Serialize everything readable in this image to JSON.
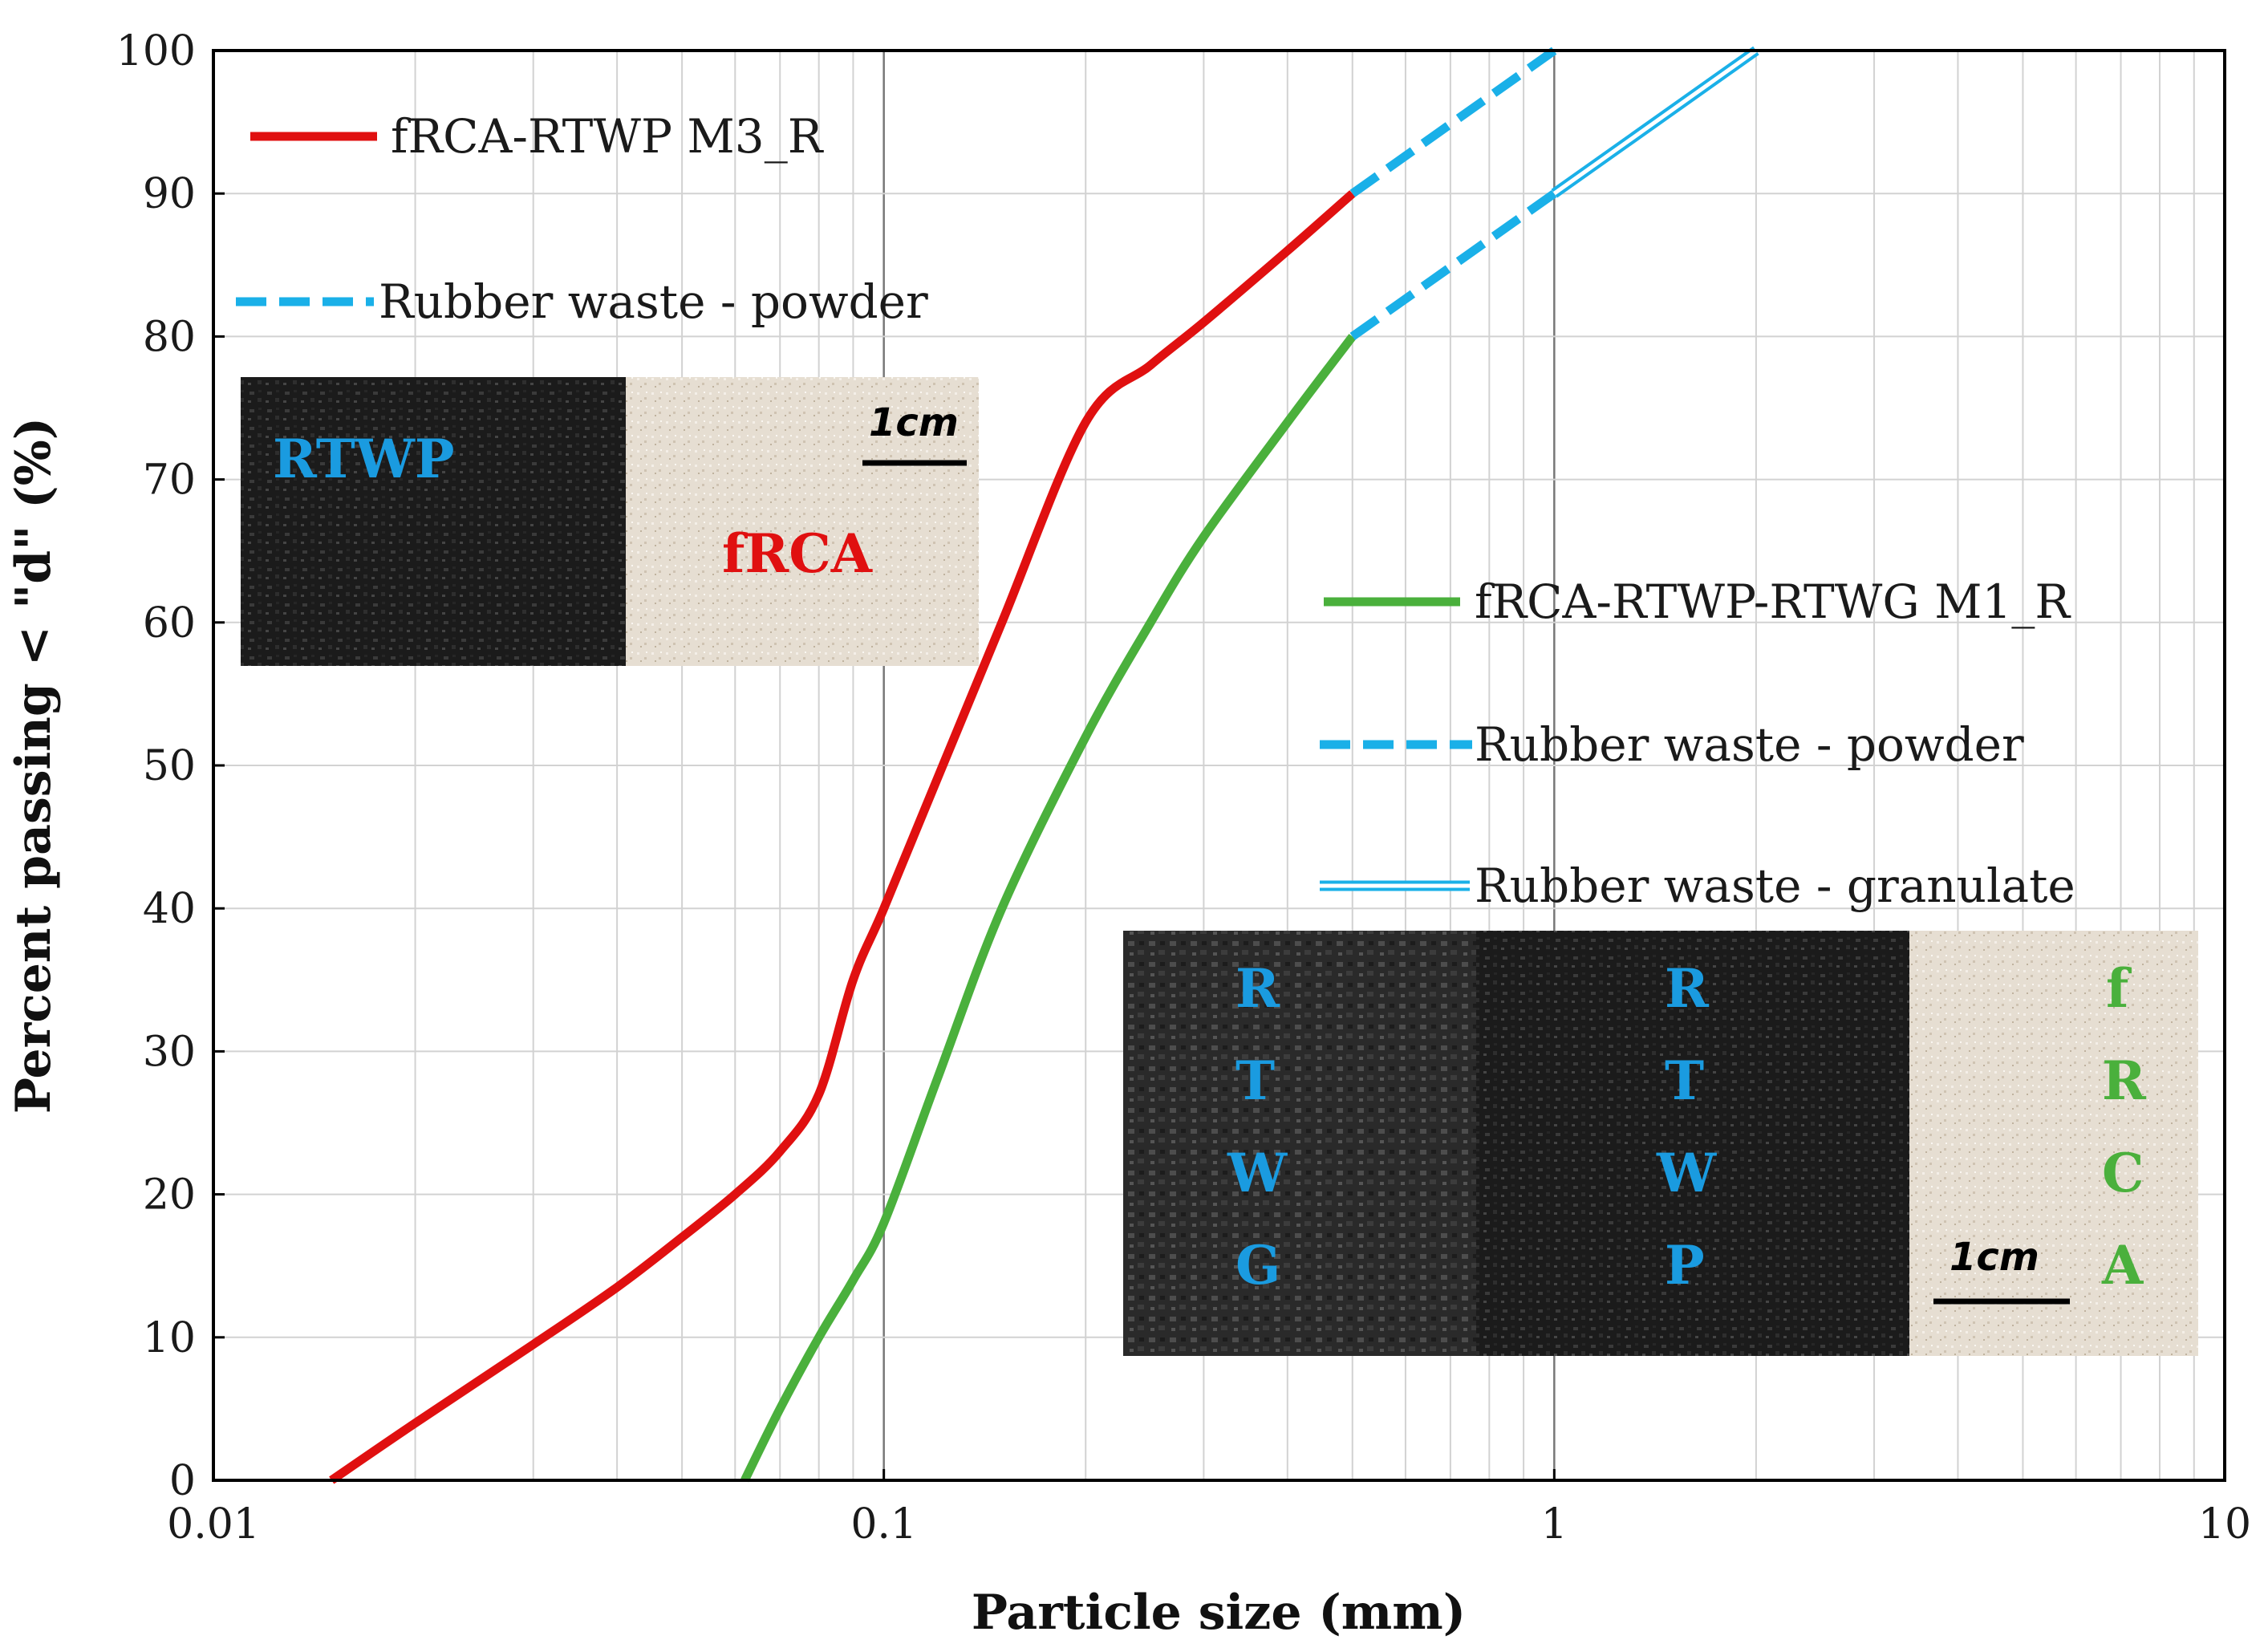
{
  "chart_data": {
    "type": "line",
    "xlabel": "Particle size (mm)",
    "ylabel": "Percent passing < \"d\" (%)",
    "x_scale": "log",
    "xlim": [
      0.01,
      10
    ],
    "ylim": [
      0,
      100
    ],
    "x_tick_labels": [
      "0.01",
      "0.1",
      "1",
      "10"
    ],
    "y_tick_labels": [
      "0",
      "10",
      "20",
      "30",
      "40",
      "50",
      "60",
      "70",
      "80",
      "90",
      "100"
    ],
    "grid": true,
    "series": [
      {
        "name": "fRCA-RTWP  M3_R",
        "color": "#e01010",
        "style": "solid",
        "x": [
          0.015,
          0.02,
          0.03,
          0.04,
          0.05,
          0.06,
          0.07,
          0.08,
          0.09,
          0.1,
          0.12,
          0.15,
          0.2,
          0.25,
          0.3,
          0.4,
          0.5
        ],
        "y": [
          0,
          4,
          9.5,
          13.5,
          17,
          20,
          23,
          27,
          35,
          40,
          49,
          60,
          74,
          78,
          81,
          86,
          90
        ]
      },
      {
        "name": "Rubber waste - powder",
        "color": "#1ab0e8",
        "style": "dashed",
        "x": [
          0.5,
          1.0
        ],
        "y": [
          90,
          100
        ]
      },
      {
        "name": "fRCA-RTWP-RTWG  M1_R",
        "color": "#4ab03c",
        "style": "solid",
        "x": [
          0.062,
          0.07,
          0.08,
          0.09,
          0.1,
          0.12,
          0.15,
          0.2,
          0.25,
          0.3,
          0.4,
          0.5
        ],
        "y": [
          0,
          5,
          10,
          14,
          18,
          28,
          40,
          52,
          60,
          66,
          74,
          80
        ]
      },
      {
        "name": "Rubber waste - powder",
        "color": "#1ab0e8",
        "style": "dashed",
        "x": [
          0.5,
          1.0
        ],
        "y": [
          80,
          90
        ]
      },
      {
        "name": "Rubber waste - granulate",
        "color": "#1ab0e8",
        "style": "double",
        "x": [
          1.0,
          2.0
        ],
        "y": [
          90,
          100
        ]
      }
    ],
    "legend_top_left": [
      "fRCA-RTWP  M3_R",
      "Rubber waste - powder"
    ],
    "legend_right": [
      "fRCA-RTWP-RTWG  M1_R",
      "Rubber waste - powder",
      "Rubber waste - granulate"
    ]
  },
  "inset_top": {
    "label_left": "RTWP",
    "label_right": "fRCA",
    "scale": "1cm"
  },
  "inset_bottom": {
    "col1": [
      "R",
      "T",
      "W",
      "G"
    ],
    "col2": [
      "R",
      "T",
      "W",
      "P"
    ],
    "col3": [
      "f",
      "R",
      "C",
      "A"
    ],
    "scale": "1cm"
  },
  "colors": {
    "red": "#e01010",
    "green": "#4ab03c",
    "cyan": "#1ab0e8",
    "label_blue": "#1a9be0"
  }
}
